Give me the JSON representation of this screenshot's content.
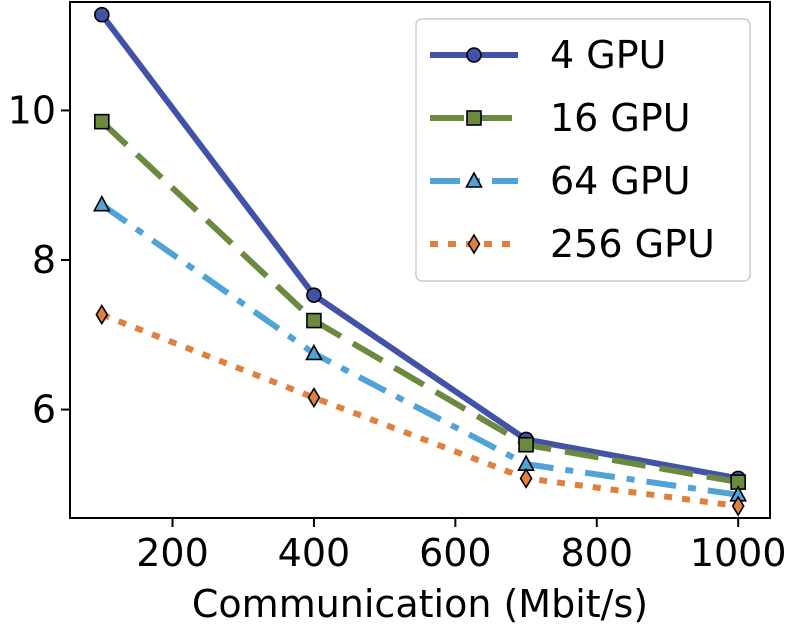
{
  "chart_data": {
    "type": "line",
    "title": "",
    "xlabel": "Communication (Mbit/s)",
    "ylabel": "",
    "x": [
      100,
      400,
      700,
      1000
    ],
    "xlim": [
      55,
      1045
    ],
    "ylim": [
      4.55,
      11.45
    ],
    "xticks": [
      200,
      400,
      600,
      800,
      1000
    ],
    "yticks": [
      6,
      8,
      10
    ],
    "grid": false,
    "legend_position": "top-right",
    "series": [
      {
        "name": "4 GPU",
        "values": [
          11.28,
          7.53,
          5.6,
          5.08
        ],
        "color": "#4152a8",
        "dash": "solid",
        "marker": "circle"
      },
      {
        "name": "16 GPU",
        "values": [
          9.85,
          7.19,
          5.53,
          5.03
        ],
        "color": "#6b8a3f",
        "dash": "dashed",
        "marker": "square"
      },
      {
        "name": "64 GPU",
        "values": [
          8.74,
          6.75,
          5.27,
          4.86
        ],
        "color": "#4fa3d6",
        "dash": "dashdot",
        "marker": "triangle"
      },
      {
        "name": "256 GPU",
        "values": [
          7.27,
          6.16,
          5.08,
          4.71
        ],
        "color": "#e0803f",
        "dash": "dotted",
        "marker": "diamond"
      }
    ]
  }
}
